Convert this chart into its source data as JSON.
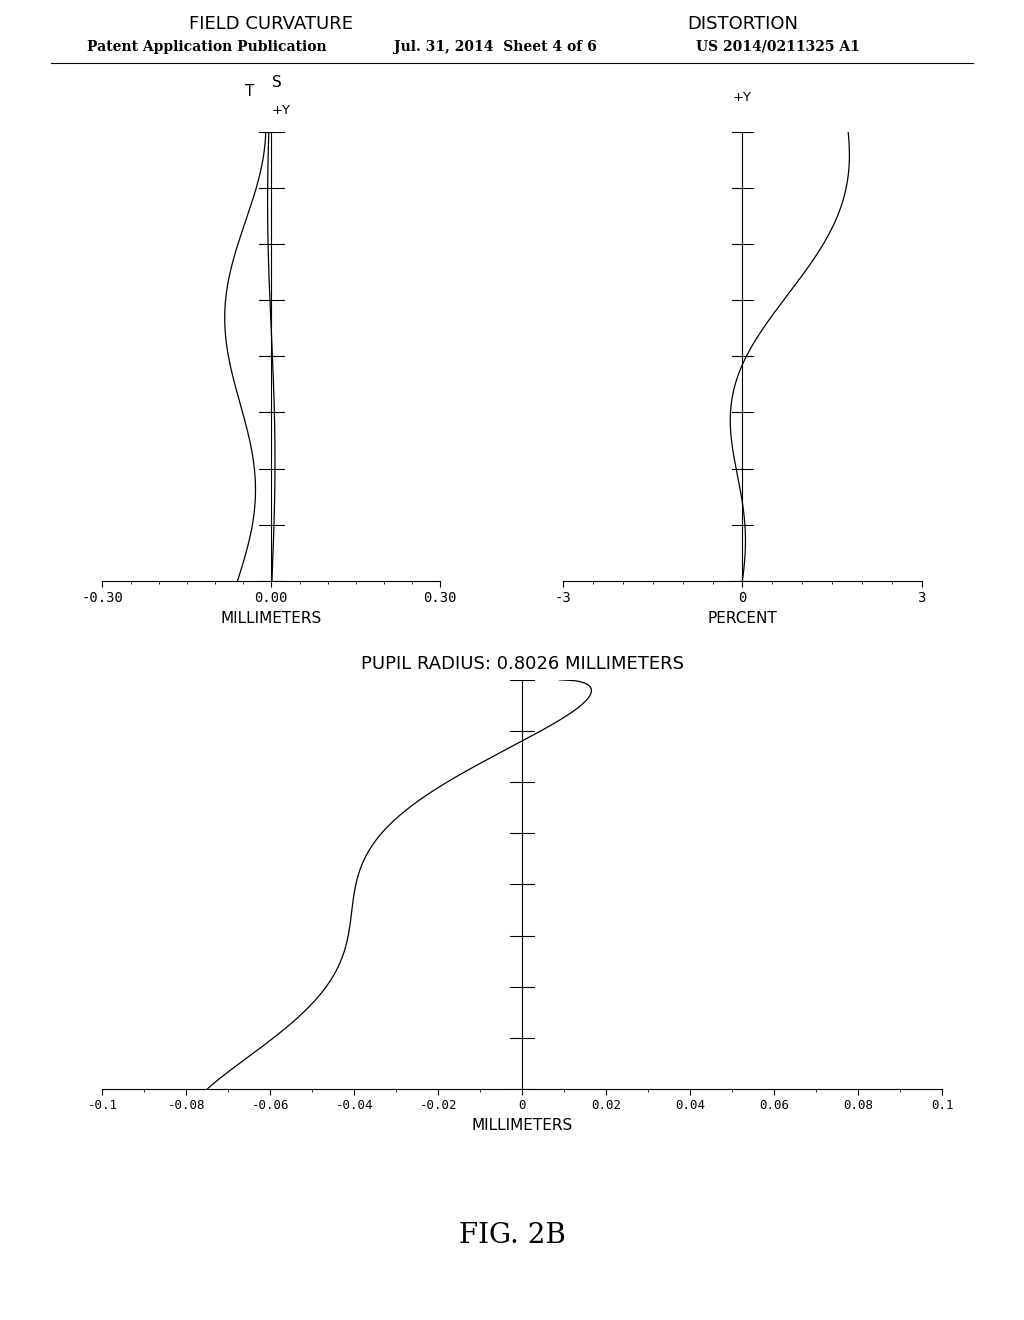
{
  "header_left": "Patent Application Publication",
  "header_mid": "Jul. 31, 2014  Sheet 4 of 6",
  "header_right": "US 2014/0211325 A1",
  "fig_label": "FIG. 2B",
  "fc_title": "FIELD CURVATURE",
  "fc_xlabel": "MILLIMETERS",
  "fc_xlim": [
    -0.3,
    0.3
  ],
  "fc_xticks": [
    -0.3,
    0.0,
    0.3
  ],
  "fc_xticklabels": [
    "-0.30",
    "0.00",
    "0.30"
  ],
  "fc_ylim": [
    0.0,
    1.0
  ],
  "fc_label_T": "T",
  "fc_label_S": "S",
  "fc_label_Y": "+Y",
  "dist_title": "DISTORTION",
  "dist_xlabel": "PERCENT",
  "dist_xlim": [
    -3,
    3
  ],
  "dist_xticks": [
    -3,
    0,
    3
  ],
  "dist_xticklabels": [
    "-3",
    "0",
    "3"
  ],
  "dist_ylim": [
    0.0,
    1.0
  ],
  "dist_label_Y": "+Y",
  "pupil_title": "PUPIL RADIUS: 0.8026 MILLIMETERS",
  "pupil_xlabel": "MILLIMETERS",
  "pupil_xlim": [
    -0.1,
    0.1
  ],
  "pupil_xticks": [
    -0.1,
    -0.08,
    -0.06,
    -0.04,
    -0.02,
    0,
    0.02,
    0.04,
    0.06,
    0.08,
    0.1
  ],
  "pupil_xticklabels": [
    "-0.1",
    "-0.08",
    "-0.06",
    "-0.04",
    "-0.02",
    "0",
    "0.02",
    "0.04",
    "0.06",
    "0.08",
    "0.1"
  ],
  "pupil_ylim": [
    0.0,
    1.0
  ],
  "bg_color": "#ffffff",
  "line_color": "#000000",
  "font_size_header": 10,
  "font_size_title": 13,
  "font_size_tick": 10,
  "font_size_label": 11,
  "font_size_fig": 20
}
